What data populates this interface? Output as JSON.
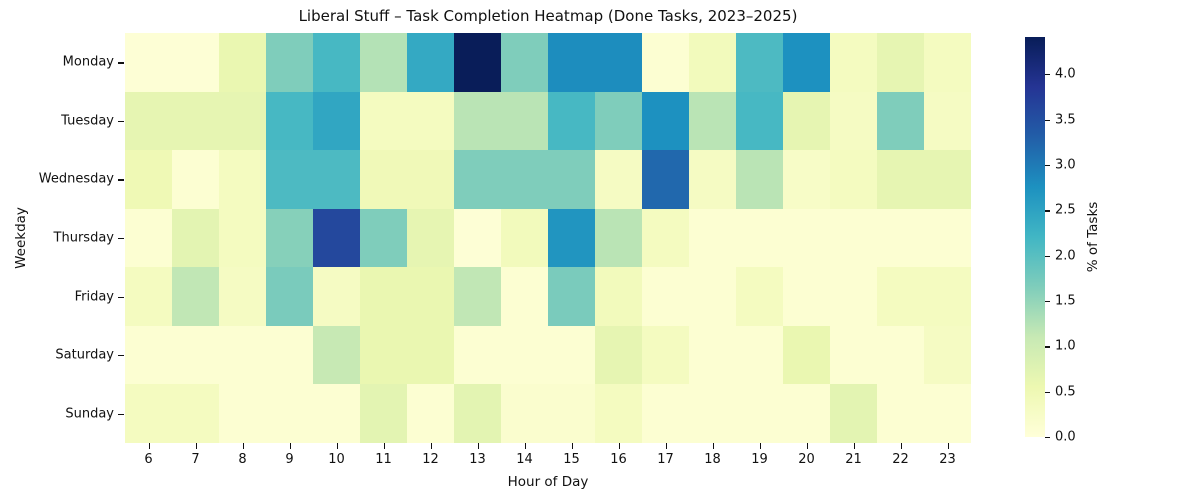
{
  "chart_data": {
    "type": "heatmap",
    "title": "Liberal Stuff – Task Completion Heatmap (Done Tasks, 2023–2025)",
    "xlabel": "Hour of Day",
    "ylabel": "Weekday",
    "x": [
      6,
      7,
      8,
      9,
      10,
      11,
      12,
      13,
      14,
      15,
      16,
      17,
      18,
      19,
      20,
      21,
      22,
      23
    ],
    "y": [
      "Monday",
      "Tuesday",
      "Wednesday",
      "Thursday",
      "Friday",
      "Saturday",
      "Sunday"
    ],
    "values": [
      [
        0.05,
        0.05,
        0.6,
        1.65,
        2.15,
        1.25,
        2.4,
        4.4,
        1.65,
        2.8,
        2.8,
        0.1,
        0.4,
        2.1,
        2.75,
        0.35,
        0.65,
        0.35
      ],
      [
        0.65,
        0.65,
        0.65,
        2.15,
        2.45,
        0.35,
        0.35,
        1.2,
        1.2,
        2.15,
        1.65,
        2.75,
        1.2,
        2.15,
        0.65,
        0.3,
        1.65,
        0.3
      ],
      [
        0.5,
        0.1,
        0.35,
        2.1,
        2.1,
        0.45,
        0.45,
        1.65,
        1.65,
        1.65,
        0.3,
        3.2,
        0.3,
        1.2,
        0.25,
        0.35,
        0.65,
        0.65
      ],
      [
        0.1,
        0.7,
        0.35,
        1.6,
        3.6,
        1.65,
        0.65,
        0.05,
        0.4,
        2.7,
        1.2,
        0.35,
        0.1,
        0.1,
        0.1,
        0.1,
        0.1,
        0.1
      ],
      [
        0.35,
        1.15,
        0.3,
        1.7,
        0.3,
        0.6,
        0.6,
        1.15,
        0.1,
        1.7,
        0.4,
        0.1,
        0.1,
        0.35,
        0.1,
        0.1,
        0.35,
        0.35
      ],
      [
        0.1,
        0.1,
        0.1,
        0.1,
        1.1,
        0.6,
        0.6,
        0.1,
        0.1,
        0.1,
        0.65,
        0.35,
        0.1,
        0.1,
        0.6,
        0.1,
        0.1,
        0.3
      ],
      [
        0.35,
        0.35,
        0.1,
        0.1,
        0.1,
        0.7,
        0.1,
        0.7,
        0.15,
        0.15,
        0.35,
        0.1,
        0.1,
        0.1,
        0.1,
        0.7,
        0.1,
        0.1
      ]
    ],
    "vmin": 0,
    "vmax": 4.41,
    "grid": false,
    "colormap": {
      "name": "YlGnBu",
      "stops": [
        "#ffffd9",
        "#edf8b1",
        "#c7e9b4",
        "#7fcdbb",
        "#41b6c4",
        "#1d91c0",
        "#225ea8",
        "#253494",
        "#081d58"
      ]
    },
    "colorbar": {
      "label": "% of Tasks",
      "ticks": [
        0,
        0.5,
        1,
        1.5,
        2,
        2.5,
        3,
        3.5,
        4
      ],
      "position": "right"
    }
  }
}
